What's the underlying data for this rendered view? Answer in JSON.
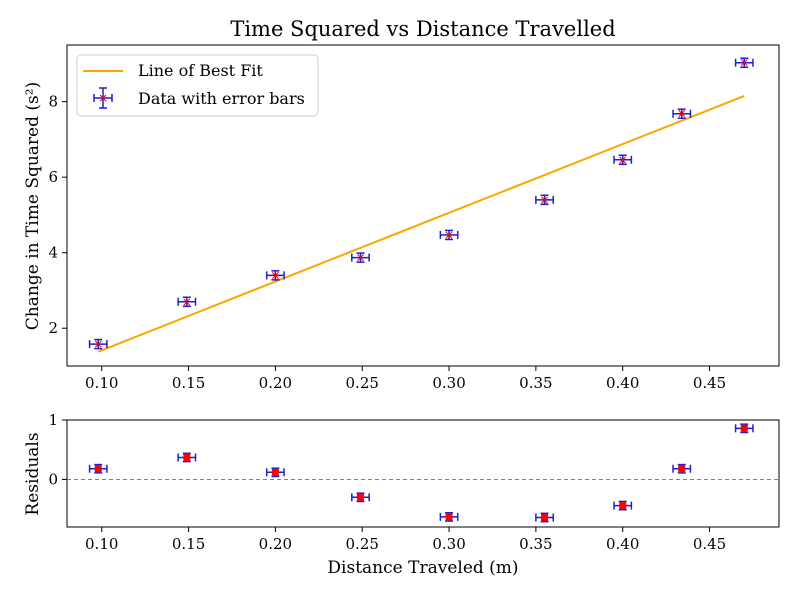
{
  "chart_data": [
    {
      "type": "scatter",
      "title": "Time Squared vs Distance Travelled",
      "xlabel": "",
      "ylabel": "Change in Time Squared (s²)",
      "xlim": [
        0.08,
        0.49
      ],
      "ylim": [
        1.0,
        9.5
      ],
      "xticks": [
        0.1,
        0.15,
        0.2,
        0.25,
        0.3,
        0.35,
        0.4,
        0.45
      ],
      "xtick_labels": [
        "0.10",
        "0.15",
        "0.20",
        "0.25",
        "0.30",
        "0.35",
        "0.40",
        "0.45"
      ],
      "yticks": [
        2,
        4,
        6,
        8
      ],
      "ytick_labels": [
        "2",
        "4",
        "6",
        "8"
      ],
      "grid": false,
      "legend": {
        "placement": "top-left",
        "entries": [
          "Line of Best Fit",
          "Data with error bars"
        ]
      },
      "series": [
        {
          "name": "Line of Best Fit",
          "kind": "line",
          "color": "#ffa500",
          "x": [
            0.098,
            0.47
          ],
          "y": [
            1.38,
            8.15
          ]
        },
        {
          "name": "Data with error bars",
          "kind": "errorbar",
          "color": "#1f1fcc",
          "marker_color": "#ff0000",
          "x": [
            0.098,
            0.149,
            0.2,
            0.249,
            0.3,
            0.355,
            0.4,
            0.434,
            0.47
          ],
          "y": [
            1.58,
            2.7,
            3.4,
            3.87,
            4.47,
            5.4,
            6.46,
            7.68,
            9.03
          ],
          "xerr": 0.005,
          "yerr": 0.12
        }
      ]
    },
    {
      "type": "scatter",
      "title": "",
      "xlabel": "Distance Traveled (m)",
      "ylabel": "Residuals",
      "xlim": [
        0.08,
        0.49
      ],
      "ylim": [
        -0.8,
        1.0
      ],
      "xticks": [
        0.1,
        0.15,
        0.2,
        0.25,
        0.3,
        0.35,
        0.4,
        0.45
      ],
      "xtick_labels": [
        "0.10",
        "0.15",
        "0.20",
        "0.25",
        "0.30",
        "0.35",
        "0.40",
        "0.45"
      ],
      "yticks": [
        0,
        1
      ],
      "ytick_labels": [
        "0",
        "1"
      ],
      "grid": false,
      "reference_line": {
        "y": 0,
        "color": "#808080",
        "style": "dashed"
      },
      "series": [
        {
          "kind": "errorbar",
          "color": "#1f1fcc",
          "marker_color": "#ff0000",
          "x": [
            0.098,
            0.149,
            0.2,
            0.249,
            0.3,
            0.355,
            0.4,
            0.434,
            0.47
          ],
          "y": [
            0.18,
            0.37,
            0.12,
            -0.3,
            -0.63,
            -0.64,
            -0.44,
            0.18,
            0.86
          ],
          "xerr": 0.005,
          "yerr": 0.07
        }
      ]
    }
  ]
}
